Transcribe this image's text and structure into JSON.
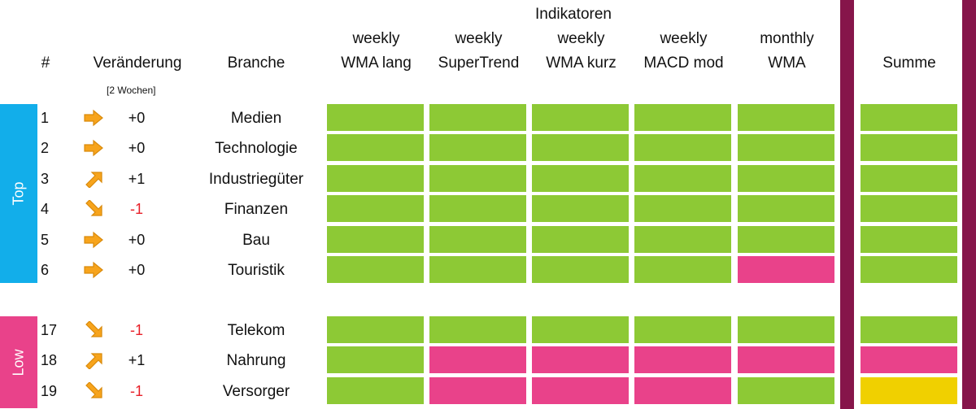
{
  "colors": {
    "green": "#8dc935",
    "pink": "#e9428a",
    "yellow": "#f0d000",
    "top_band": "#12aeea",
    "low_band": "#e9428a",
    "divider": "#86154a",
    "arrow": "#f7a41c"
  },
  "header": {
    "group": "Indikatoren",
    "rank": "#",
    "change": "Veränderung",
    "change_sub": "[2 Wochen]",
    "sector": "Branche",
    "sum": "Summe",
    "indicators": [
      {
        "line1": "weekly",
        "line2": "WMA lang"
      },
      {
        "line1": "weekly",
        "line2": "SuperTrend"
      },
      {
        "line1": "weekly",
        "line2": "WMA kurz"
      },
      {
        "line1": "weekly",
        "line2": "MACD mod"
      },
      {
        "line1": "monthly",
        "line2": "WMA"
      }
    ]
  },
  "groups": {
    "top": "Top",
    "low": "Low"
  },
  "rows": [
    {
      "rank": "1",
      "trend": "flat",
      "trend_icon": "arrow-right-icon",
      "delta": "+0",
      "sector": "Medien",
      "signals": [
        "green",
        "green",
        "green",
        "green",
        "green"
      ],
      "sum": "green"
    },
    {
      "rank": "2",
      "trend": "flat",
      "trend_icon": "arrow-right-icon",
      "delta": "+0",
      "sector": "Technologie",
      "signals": [
        "green",
        "green",
        "green",
        "green",
        "green"
      ],
      "sum": "green"
    },
    {
      "rank": "3",
      "trend": "up",
      "trend_icon": "arrow-up-right-icon",
      "delta": "+1",
      "sector": "Industriegüter",
      "signals": [
        "green",
        "green",
        "green",
        "green",
        "green"
      ],
      "sum": "green"
    },
    {
      "rank": "4",
      "trend": "down",
      "trend_icon": "arrow-down-right-icon",
      "delta": "-1",
      "sector": "Finanzen",
      "signals": [
        "green",
        "green",
        "green",
        "green",
        "green"
      ],
      "sum": "green"
    },
    {
      "rank": "5",
      "trend": "flat",
      "trend_icon": "arrow-right-icon",
      "delta": "+0",
      "sector": "Bau",
      "signals": [
        "green",
        "green",
        "green",
        "green",
        "green"
      ],
      "sum": "green"
    },
    {
      "rank": "6",
      "trend": "flat",
      "trend_icon": "arrow-right-icon",
      "delta": "+0",
      "sector": "Touristik",
      "signals": [
        "green",
        "green",
        "green",
        "green",
        "pink"
      ],
      "sum": "green"
    },
    {
      "rank": "17",
      "trend": "down",
      "trend_icon": "arrow-down-right-icon",
      "delta": "-1",
      "sector": "Telekom",
      "signals": [
        "green",
        "green",
        "green",
        "green",
        "green"
      ],
      "sum": "green"
    },
    {
      "rank": "18",
      "trend": "up",
      "trend_icon": "arrow-up-right-icon",
      "delta": "+1",
      "sector": "Nahrung",
      "signals": [
        "green",
        "pink",
        "pink",
        "pink",
        "pink"
      ],
      "sum": "pink"
    },
    {
      "rank": "19",
      "trend": "down",
      "trend_icon": "arrow-down-right-icon",
      "delta": "-1",
      "sector": "Versorger",
      "signals": [
        "green",
        "pink",
        "pink",
        "pink",
        "green"
      ],
      "sum": "yellow"
    }
  ]
}
